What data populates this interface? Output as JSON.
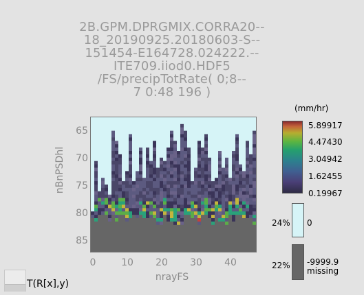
{
  "title": {
    "lines": [
      "2B.GPM.DPRGMIX.CORRA20--",
      "18_20190925.20180603-S--",
      "151454-E164728.024222.--",
      "ITE709.iiod0.HDF5",
      "/FS/precipTotRate( 0;8--",
      "7 0:48 196 )"
    ]
  },
  "axes": {
    "y_label": "nBnPSDhl",
    "x_label": "nrayFS",
    "y_ticks": [
      "65",
      "70",
      "75",
      "80",
      "85"
    ],
    "x_ticks": [
      "0",
      "10",
      "20",
      "30",
      "40"
    ]
  },
  "colorbar": {
    "units": "(mm/hr)",
    "ticks": [
      "5.89917",
      "4.47430",
      "3.04942",
      "1.62455",
      "0.19967"
    ],
    "zero_label": "0",
    "zero_pct": "24%",
    "missing_value": "-9999.9",
    "missing_label": "missing",
    "missing_pct": "22%"
  },
  "nav": {
    "label": "T(R[x],y)"
  },
  "chart_data": {
    "type": "heatmap",
    "title": "2B.GPM.DPRGMIX.CORRA2018_20190925.20180603-S151454-E164728.024222.ITE709.iiod0.HDF5 /FS/precipTotRate( 0;87 0:48 196 )",
    "xlabel": "nrayFS",
    "ylabel": "nBnPSDhl",
    "xlim": [
      0,
      48
    ],
    "ylim": [
      86,
      62
    ],
    "zlim": [
      0.19967,
      5.89917
    ],
    "units": "mm/hr",
    "percent_zero": 24,
    "percent_missing": 22,
    "missing_value": -9999.9
  }
}
